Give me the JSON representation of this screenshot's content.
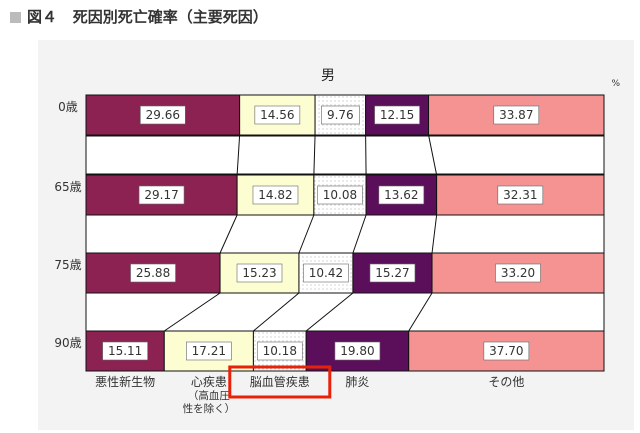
{
  "figure": {
    "title_prefix": "図４",
    "title": "死因別死亡確率（主要死因）"
  },
  "colors": {
    "cancer": "#8b2252",
    "heart": "#fdfdd2",
    "cerebro": "#ffffff",
    "pneumonia": "#5b0e5a",
    "other": "#f59393",
    "highlight": "#e8210a"
  },
  "chart_data": {
    "type": "bar",
    "orientation": "horizontal-stacked-100",
    "title": "男",
    "unit": "%",
    "categories": [
      "0歳",
      "65歳",
      "75歳",
      "90歳"
    ],
    "series": [
      {
        "name": "悪性新生物",
        "values": [
          29.66,
          29.17,
          25.88,
          15.11
        ]
      },
      {
        "name": "心疾患（高血圧性を除く）",
        "values": [
          14.56,
          14.82,
          15.23,
          17.21
        ]
      },
      {
        "name": "脳血管疾患",
        "values": [
          9.76,
          10.08,
          10.42,
          10.18
        ]
      },
      {
        "name": "肺炎",
        "values": [
          12.15,
          13.62,
          15.27,
          19.8
        ]
      },
      {
        "name": "その他",
        "values": [
          33.87,
          32.31,
          33.2,
          37.7
        ]
      }
    ],
    "legend_labels": [
      {
        "lines": [
          "悪性新生物"
        ]
      },
      {
        "lines": [
          "心疾患",
          "（高血圧",
          "性を除く）"
        ]
      },
      {
        "lines": [
          "脳血管疾患"
        ],
        "highlight": true
      },
      {
        "lines": [
          "肺炎"
        ]
      },
      {
        "lines": [
          "その他"
        ]
      }
    ],
    "xlim": [
      0,
      100
    ]
  }
}
